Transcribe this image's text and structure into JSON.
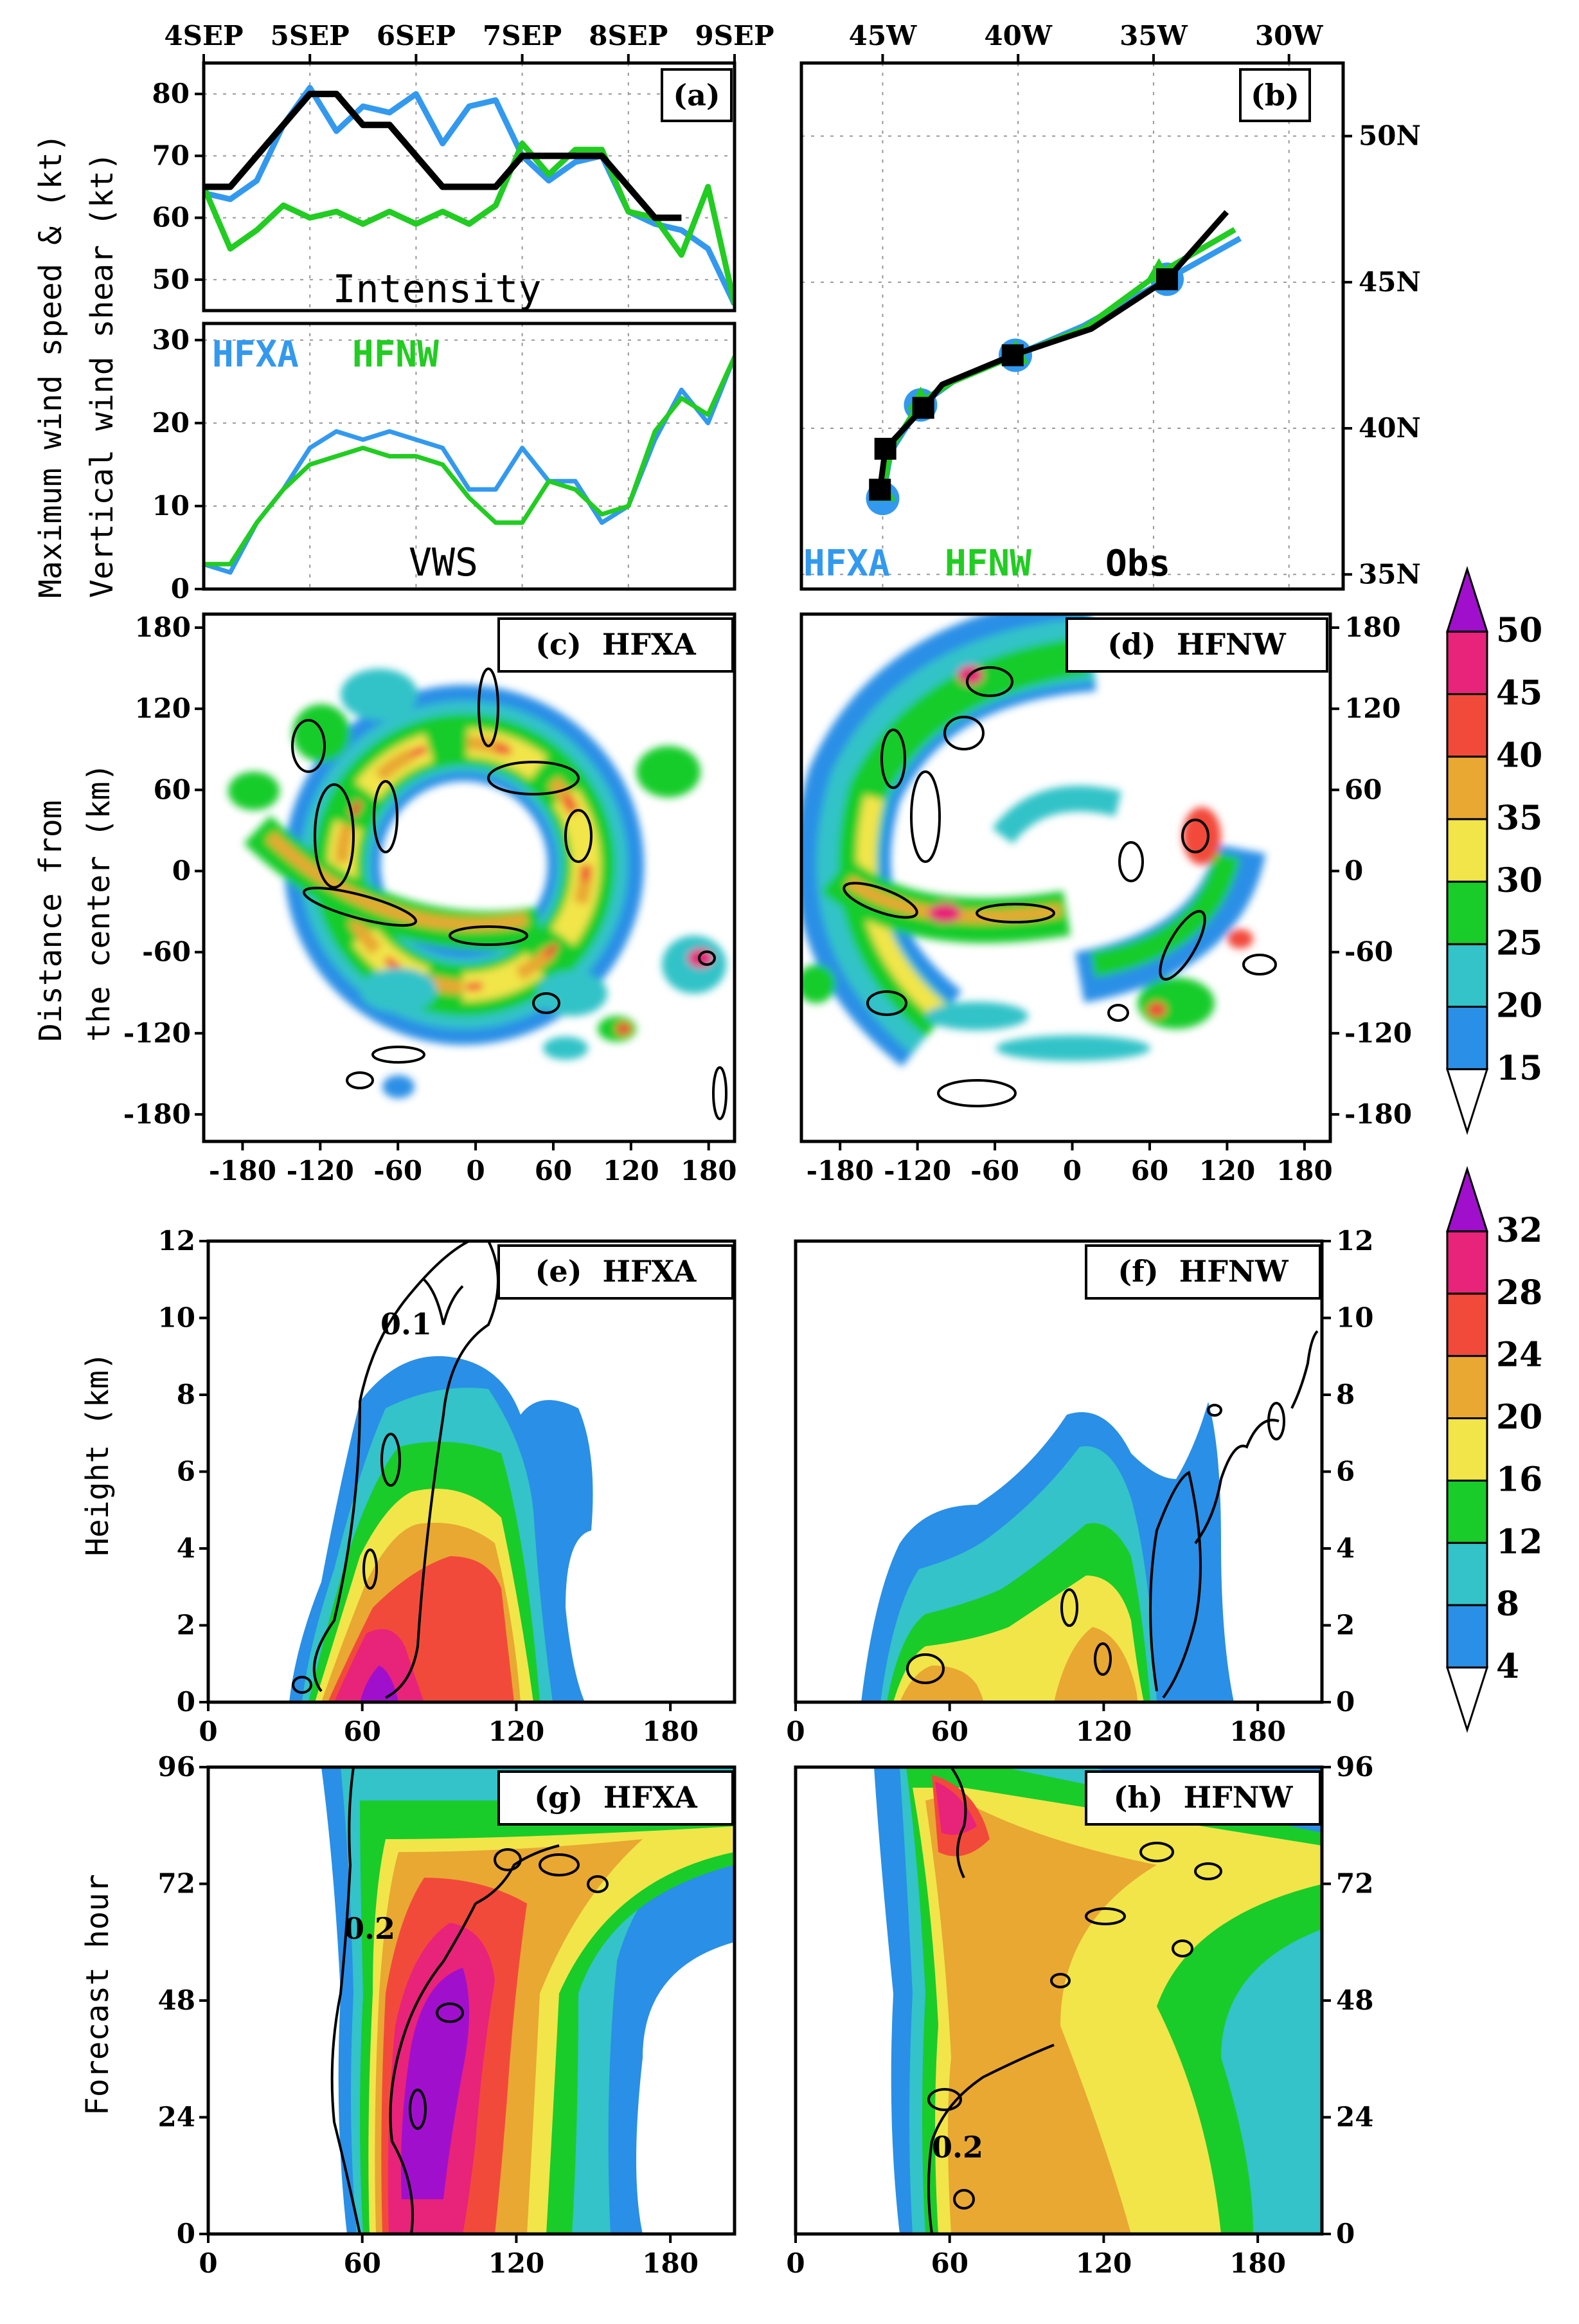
{
  "colors": {
    "hfxa": "#3399ee",
    "hfnw": "#22cc22",
    "obs": "#000000",
    "levels": [
      "#ffffff",
      "#2a8fe6",
      "#33c3c8",
      "#19cc29",
      "#f1e54a",
      "#e8a832",
      "#f24a3a",
      "#e8237a",
      "#a010cc"
    ]
  },
  "labels": {
    "ylabel_ab_line1": "Maximum wind speed & (kt)",
    "ylabel_ab_line2": "Vertical wind shear (kt)",
    "ylabel_cd_line1": "Distance from",
    "ylabel_cd_line2": "the center (km)",
    "ylabel_ef": "Height (km)",
    "ylabel_gh": "Forecast hour"
  },
  "colorbars": [
    {
      "levels": [
        "15",
        "20",
        "25",
        "30",
        "35",
        "40",
        "45",
        "50"
      ]
    },
    {
      "levels": [
        "4",
        "8",
        "12",
        "16",
        "20",
        "24",
        "28",
        "32"
      ]
    }
  ],
  "chart_data": [
    {
      "id": "a_intensity",
      "panel_label": "(a)",
      "type": "line",
      "title": "Intensity",
      "x_ticks": [
        "4SEP",
        "5SEP",
        "6SEP",
        "7SEP",
        "8SEP",
        "9SEP"
      ],
      "xlim_days": [
        0,
        5
      ],
      "ylim": [
        45,
        85
      ],
      "y_ticks": [
        "50",
        "60",
        "70",
        "80"
      ],
      "series": [
        {
          "name": "HFXA",
          "color_key": "hfxa",
          "x": [
            0,
            0.25,
            0.5,
            0.75,
            1.0,
            1.25,
            1.5,
            1.75,
            2.0,
            2.25,
            2.5,
            2.75,
            3.0,
            3.25,
            3.5,
            3.75,
            4.0,
            4.25,
            4.5,
            4.75,
            5.0
          ],
          "y": [
            64,
            63,
            66,
            75,
            81,
            74,
            78,
            77,
            80,
            72,
            78,
            79,
            70,
            66,
            69,
            70,
            61,
            59,
            58,
            55,
            46
          ]
        },
        {
          "name": "HFNW",
          "color_key": "hfnw",
          "x": [
            0,
            0.25,
            0.5,
            0.75,
            1.0,
            1.25,
            1.5,
            1.75,
            2.0,
            2.25,
            2.5,
            2.75,
            3.0,
            3.25,
            3.5,
            3.75,
            4.0,
            4.25,
            4.5,
            4.75,
            5.0
          ],
          "y": [
            65,
            55,
            58,
            62,
            60,
            61,
            59,
            61,
            59,
            61,
            59,
            62,
            72,
            67,
            71,
            71,
            61,
            60,
            54,
            65,
            46
          ]
        },
        {
          "name": "Obs",
          "color_key": "obs",
          "x": [
            0,
            0.25,
            0.5,
            0.75,
            1.0,
            1.25,
            1.5,
            1.75,
            2.0,
            2.25,
            2.5,
            2.75,
            3.0,
            3.25,
            3.5,
            3.75,
            4.0,
            4.25,
            4.5
          ],
          "y": [
            65,
            65,
            70,
            75,
            80,
            80,
            75,
            75,
            70,
            65,
            65,
            65,
            70,
            70,
            70,
            70,
            65,
            60,
            60
          ]
        }
      ]
    },
    {
      "id": "a_vws",
      "type": "line",
      "title": "VWS",
      "xlim_days": [
        0,
        5
      ],
      "ylim": [
        0,
        32
      ],
      "y_ticks": [
        "0",
        "10",
        "20",
        "30"
      ],
      "series": [
        {
          "name": "HFXA",
          "color_key": "hfxa",
          "x": [
            0,
            0.25,
            0.5,
            0.75,
            1.0,
            1.25,
            1.5,
            1.75,
            2.0,
            2.25,
            2.5,
            2.75,
            3.0,
            3.25,
            3.5,
            3.75,
            4.0,
            4.25,
            4.5,
            4.75,
            5.0
          ],
          "y": [
            3,
            2,
            8,
            12,
            17,
            19,
            18,
            19,
            18,
            17,
            12,
            12,
            17,
            13,
            13,
            8,
            10,
            18,
            24,
            20,
            28
          ]
        },
        {
          "name": "HFNW",
          "color_key": "hfnw",
          "x": [
            0,
            0.25,
            0.5,
            0.75,
            1.0,
            1.25,
            1.5,
            1.75,
            2.0,
            2.25,
            2.5,
            2.75,
            3.0,
            3.25,
            3.5,
            3.75,
            4.0,
            4.25,
            4.5,
            4.75,
            5.0
          ],
          "y": [
            3,
            3,
            8,
            12,
            15,
            16,
            17,
            16,
            16,
            15,
            11,
            8,
            8,
            13,
            12,
            9,
            10,
            19,
            23,
            21,
            28
          ]
        }
      ],
      "legend": [
        "HFXA",
        "HFNW"
      ]
    },
    {
      "id": "b_track",
      "panel_label": "(b)",
      "type": "line",
      "x_ticks": [
        "45W",
        "40W",
        "35W",
        "30W"
      ],
      "x_tick_lon": [
        -45,
        -40,
        -35,
        -30
      ],
      "xlim_lon": [
        -48,
        -28
      ],
      "y_ticks": [
        "35N",
        "40N",
        "45N",
        "50N"
      ],
      "y_tick_lat": [
        35,
        40,
        45,
        50
      ],
      "ylim_lat": [
        34.5,
        52.5
      ],
      "series": [
        {
          "name": "HFXA",
          "color_key": "hfxa",
          "lon": [
            -45.0,
            -44.7,
            -43.6,
            -42.4,
            -40.1,
            -37.6,
            -34.5,
            -31.8
          ],
          "lat": [
            37.6,
            39.2,
            40.8,
            41.6,
            42.5,
            43.5,
            45.1,
            46.5
          ]
        },
        {
          "name": "HFNW",
          "color_key": "hfnw",
          "lon": [
            -45.0,
            -44.7,
            -43.6,
            -42.4,
            -40.1,
            -37.6,
            -34.8,
            -32.0
          ],
          "lat": [
            37.8,
            39.3,
            40.9,
            41.6,
            42.5,
            43.4,
            45.3,
            46.8
          ]
        },
        {
          "name": "Obs",
          "color_key": "obs",
          "lon": [
            -45.1,
            -44.9,
            -43.5,
            -42.8,
            -40.2,
            -37.3,
            -34.5,
            -32.3
          ],
          "lat": [
            37.9,
            39.3,
            40.7,
            41.5,
            42.5,
            43.4,
            45.1,
            47.4
          ]
        }
      ],
      "legend": [
        "HFXA",
        "HFNW",
        "Obs"
      ]
    },
    {
      "id": "c_plan",
      "panel_label": "(c)  HFXA",
      "type": "heatmap",
      "x_ticks": [
        "-180",
        "-120",
        "-60",
        "0",
        "60",
        "120",
        "180"
      ],
      "y_ticks": [
        "-180",
        "-120",
        "-60",
        "0",
        "60",
        "120",
        "180"
      ],
      "xlim": [
        -210,
        200
      ],
      "ylim": [
        -200,
        190
      ],
      "colorbar_levels": [
        15,
        20,
        25,
        30,
        35,
        40,
        45,
        50
      ],
      "feature": "closed annular rainband, radius about 90 km"
    },
    {
      "id": "d_plan",
      "panel_label": "(d)  HFNW",
      "type": "heatmap",
      "x_ticks": [
        "-180",
        "-120",
        "-60",
        "0",
        "60",
        "120",
        "180"
      ],
      "y_ticks": [
        "-180",
        "-120",
        "-60",
        "0",
        "60",
        "120",
        "180"
      ],
      "xlim": [
        -210,
        200
      ],
      "ylim": [
        -200,
        190
      ],
      "colorbar_levels": [
        15,
        20,
        25,
        30,
        35,
        40,
        45,
        50
      ],
      "feature": "open spiral rainbands, asymmetric"
    },
    {
      "id": "e_height",
      "panel_label": "(e)  HFXA",
      "type": "heatmap",
      "x_ticks": [
        "0",
        "60",
        "120",
        "180"
      ],
      "y_ticks": [
        "0",
        "2",
        "4",
        "6",
        "8",
        "10",
        "12"
      ],
      "xlim": [
        0,
        205
      ],
      "ylim": [
        0,
        12
      ],
      "contour_label": "0.1",
      "colorbar_levels": [
        4,
        8,
        12,
        16,
        20,
        24,
        28,
        32
      ]
    },
    {
      "id": "f_height",
      "panel_label": "(f)  HFNW",
      "type": "heatmap",
      "x_ticks": [
        "0",
        "60",
        "120",
        "180"
      ],
      "y_ticks": [
        "0",
        "2",
        "4",
        "6",
        "8",
        "10",
        "12"
      ],
      "xlim": [
        0,
        205
      ],
      "ylim": [
        0,
        12
      ],
      "colorbar_levels": [
        4,
        8,
        12,
        16,
        20,
        24,
        28,
        32
      ]
    },
    {
      "id": "g_hovmoller",
      "panel_label": "(g)  HFXA",
      "type": "heatmap",
      "x_ticks": [
        "0",
        "60",
        "120",
        "180"
      ],
      "y_ticks": [
        "0",
        "24",
        "48",
        "72",
        "96"
      ],
      "xlim": [
        0,
        205
      ],
      "ylim": [
        0,
        96
      ],
      "contour_label": "0.2",
      "colorbar_levels": [
        4,
        8,
        12,
        16,
        20,
        24,
        28,
        32
      ]
    },
    {
      "id": "h_hovmoller",
      "panel_label": "(h)  HFNW",
      "type": "heatmap",
      "x_ticks": [
        "0",
        "60",
        "120",
        "180"
      ],
      "y_ticks": [
        "0",
        "24",
        "48",
        "72",
        "96"
      ],
      "xlim": [
        0,
        205
      ],
      "ylim": [
        0,
        96
      ],
      "contour_label": "0.2",
      "colorbar_levels": [
        4,
        8,
        12,
        16,
        20,
        24,
        28,
        32
      ]
    }
  ]
}
